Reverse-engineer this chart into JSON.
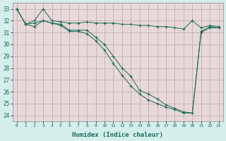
{
  "xlabel": "Humidex (Indice chaleur)",
  "bg_color": "#d4eeec",
  "plot_bg_color": "#e8d8d8",
  "grid_color": "#b8a8a8",
  "line_color": "#1a6b5a",
  "xlim": [
    -0.5,
    23.5
  ],
  "ylim": [
    23.5,
    33.5
  ],
  "xticks": [
    0,
    1,
    2,
    3,
    4,
    5,
    6,
    7,
    8,
    9,
    10,
    11,
    12,
    13,
    14,
    15,
    16,
    17,
    18,
    19,
    20,
    21,
    22,
    23
  ],
  "yticks": [
    24,
    25,
    26,
    27,
    28,
    29,
    30,
    31,
    32,
    33
  ],
  "series": [
    {
      "x": [
        0,
        1,
        2,
        3,
        4,
        5,
        6,
        7,
        8,
        9,
        10,
        11,
        12,
        13,
        14,
        15,
        16,
        17,
        18,
        19,
        20,
        21,
        22,
        23
      ],
      "y": [
        33.0,
        31.7,
        32.0,
        33.0,
        32.0,
        31.9,
        31.8,
        31.8,
        31.9,
        31.8,
        31.8,
        31.8,
        31.7,
        31.7,
        31.6,
        31.6,
        31.5,
        31.5,
        31.4,
        31.3,
        32.0,
        31.4,
        31.6,
        31.5
      ]
    },
    {
      "x": [
        0,
        1,
        2,
        3,
        4,
        5,
        6,
        7,
        8,
        9,
        10,
        11,
        12,
        13,
        14,
        15,
        16,
        17,
        18,
        19,
        20,
        21,
        22,
        23
      ],
      "y": [
        33.0,
        31.7,
        31.8,
        32.0,
        31.8,
        31.7,
        31.2,
        31.2,
        31.2,
        30.6,
        30.0,
        29.0,
        28.0,
        27.3,
        26.1,
        25.8,
        25.4,
        24.9,
        24.6,
        24.3,
        24.2,
        31.1,
        31.5,
        31.4
      ]
    },
    {
      "x": [
        0,
        1,
        2,
        3,
        4,
        5,
        6,
        7,
        8,
        9,
        10,
        11,
        12,
        13,
        14,
        15,
        16,
        17,
        18,
        19,
        20,
        21,
        22,
        23
      ],
      "y": [
        33.0,
        31.7,
        31.5,
        32.0,
        31.8,
        31.6,
        31.1,
        31.1,
        30.9,
        30.3,
        29.5,
        28.4,
        27.4,
        26.5,
        25.8,
        25.3,
        25.0,
        24.7,
        24.5,
        24.2,
        24.2,
        31.0,
        31.4,
        31.4
      ]
    }
  ]
}
